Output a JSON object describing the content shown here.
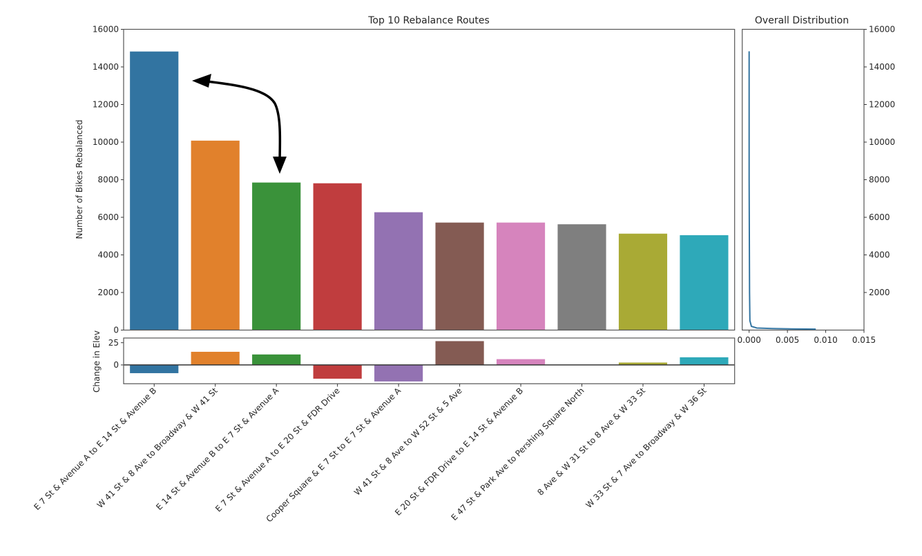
{
  "chart_data": [
    {
      "type": "bar",
      "title": "Top 10 Rebalance Routes",
      "xlabel": "",
      "ylabel": "Number of Bikes Rebalanced",
      "ylim": [
        0,
        16000
      ],
      "yticks": [
        0,
        2000,
        4000,
        6000,
        8000,
        10000,
        12000,
        14000,
        16000
      ],
      "grid": false,
      "categories": [
        "E 7 St & Avenue A to E 14 St & Avenue B",
        "W 41 St & 8 Ave to Broadway & W 41 St",
        "E 14 St & Avenue B to E 7 St & Avenue A",
        "E 7 St & Avenue A to E 20 St & FDR Drive",
        "Cooper Square & E 7 St to E 7 St & Avenue A",
        "W 41 St & 8 Ave to W 52 St & 5 Ave",
        "E 20 St & FDR Drive to E 14 St & Avenue B",
        "E 47 St & Park Ave to Pershing Square North",
        "8 Ave & W 31 St to 8 Ave & W 33 St",
        "W 33 St & 7 Ave to Broadway & W 36 St"
      ],
      "values": [
        14830,
        10090,
        7860,
        7820,
        6280,
        5730,
        5730,
        5640,
        5140,
        5060
      ],
      "colors": [
        "#3274a1",
        "#e1812c",
        "#3a923a",
        "#c03d3e",
        "#9372b2",
        "#845b53",
        "#d684bd",
        "#7f7f7f",
        "#a9aa35",
        "#2ea9b9"
      ],
      "annotations": [
        {
          "type": "double-arrow",
          "from_category": 0,
          "to_category": 2,
          "description": "curved double-headed arrow linking bar 1 and bar 3"
        }
      ]
    },
    {
      "type": "bar",
      "title": "",
      "xlabel": "",
      "ylabel": "Change in Elev",
      "ylim": [
        -21,
        30
      ],
      "yticks": [
        0,
        25
      ],
      "grid": false,
      "categories_ref": "same as Top 10 Rebalance Routes",
      "values": [
        -9.5,
        15,
        12,
        -15.7,
        -18.8,
        27,
        6.7,
        0,
        2.9,
        8.8
      ],
      "zero_line": true
    },
    {
      "type": "line",
      "title": "Overall Distribution",
      "xlabel": "",
      "ylabel": "",
      "xlim": [
        -0.0005,
        0.015
      ],
      "xticks": [
        "0.000",
        "0.005",
        "0.010",
        "0.015"
      ],
      "ylim": [
        0,
        16000
      ],
      "yticks": [
        2000,
        4000,
        6000,
        8000,
        10000,
        12000,
        14000,
        16000
      ],
      "y_axis_position": "right",
      "series": [
        {
          "name": "density (KDE, horizontal)",
          "color": "#3274a1",
          "points": [
            [
              0.0087,
              50
            ],
            [
              0.006,
              60
            ],
            [
              0.003,
              80
            ],
            [
              0.001,
              110
            ],
            [
              0.0003,
              200
            ],
            [
              0.0001,
              500
            ],
            [
              5e-05,
              2000
            ],
            [
              0.0,
              8000
            ],
            [
              0.0,
              14830
            ]
          ]
        }
      ]
    }
  ],
  "figure": {
    "main_title": "Top 10 Rebalance Routes",
    "main_ylabel": "Number of Bikes Rebalanced",
    "elev_ylabel": "Change in Elev",
    "dist_title": "Overall Distribution"
  }
}
